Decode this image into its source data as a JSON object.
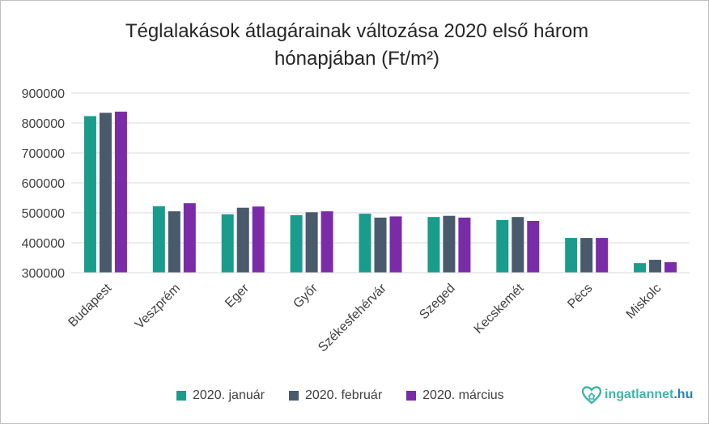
{
  "chart_data": {
    "type": "bar",
    "title_line1": "Téglalakások átlagárainak változása 2020 első három",
    "title_line2": "hónapjában (Ft/m²)",
    "categories": [
      "Budapest",
      "Veszprém",
      "Eger",
      "Győr",
      "Székesfehérvár",
      "Szeged",
      "Kecskemét",
      "Pécs",
      "Miskolc"
    ],
    "series": [
      {
        "name": "2020. január",
        "color": "#1a9c8c",
        "values": [
          823000,
          522000,
          495000,
          492000,
          497000,
          486000,
          476000,
          416000,
          332000
        ]
      },
      {
        "name": "2020. február",
        "color": "#485a6c",
        "values": [
          834000,
          505000,
          517000,
          502000,
          484000,
          490000,
          486000,
          416000,
          343000
        ]
      },
      {
        "name": "2020. március",
        "color": "#7a2ca8",
        "values": [
          838000,
          532000,
          521000,
          505000,
          488000,
          484000,
          473000,
          416000,
          335000
        ]
      }
    ],
    "yticks": [
      "300000",
      "400000",
      "500000",
      "600000",
      "700000",
      "800000",
      "900000"
    ],
    "ylim": [
      300000,
      900000
    ],
    "grid": true,
    "legend_position": "bottom"
  },
  "logo": {
    "name": "ingatlannet",
    "tld": ".hu",
    "icon": "heart-house-icon"
  }
}
